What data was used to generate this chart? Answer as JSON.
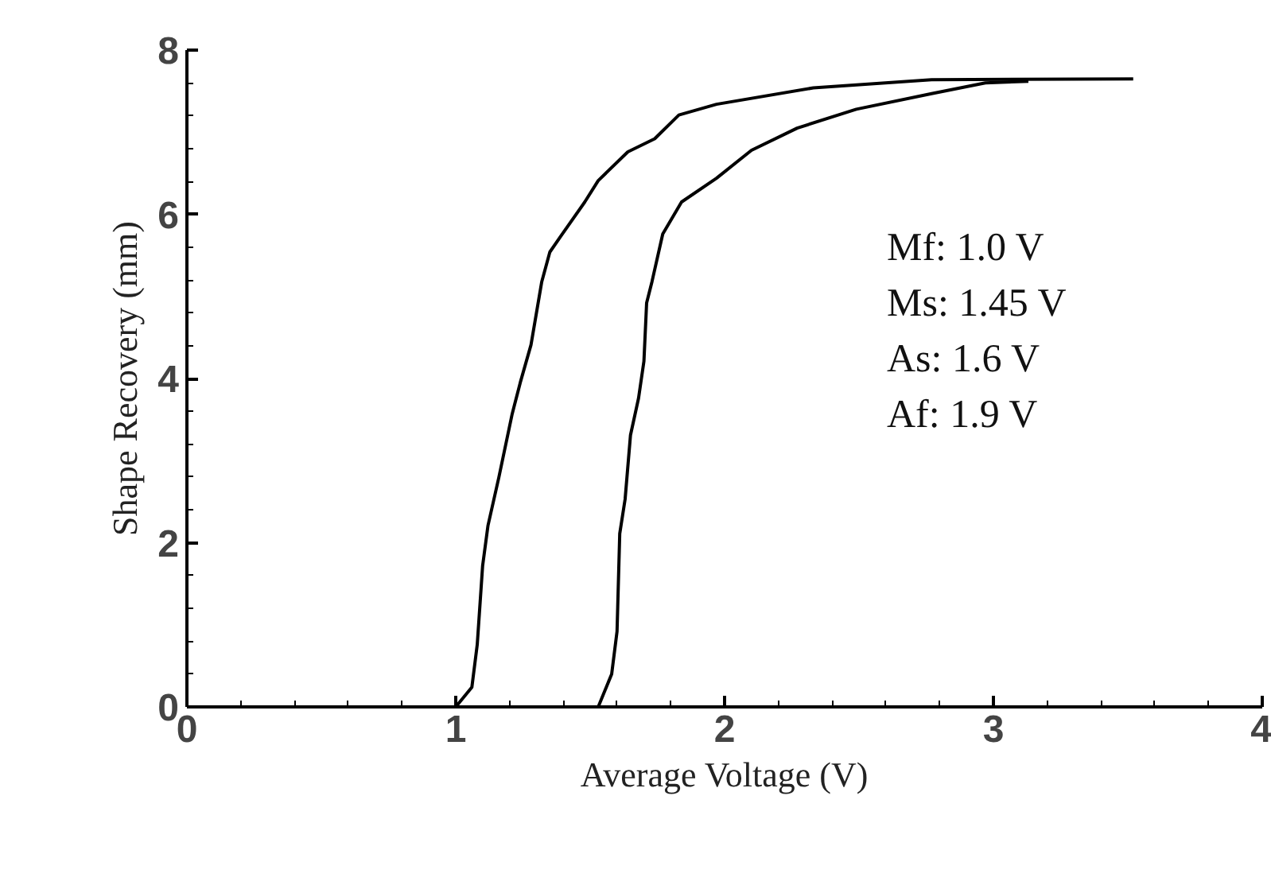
{
  "chart_data": {
    "type": "line",
    "xlabel": "Average Voltage (V)",
    "ylabel": "Shape Recovery (mm)",
    "xlim": [
      0,
      4
    ],
    "ylim": [
      0,
      8
    ],
    "xticks": [
      0,
      1,
      2,
      3,
      4
    ],
    "yticks": [
      0,
      2,
      4,
      6,
      8
    ],
    "grid": false,
    "marker": "none",
    "line_style": "solid",
    "series": [
      {
        "color": "#000000",
        "x": [
          0.0,
          1.0,
          1.06,
          1.08,
          1.1,
          1.12,
          1.16,
          1.21,
          1.24,
          1.28,
          1.32,
          1.35,
          1.39,
          1.48,
          1.53,
          1.64,
          1.74,
          1.83,
          1.97,
          2.33,
          2.77,
          3.52
        ],
        "values": [
          0,
          0,
          0.24,
          0.76,
          1.72,
          2.21,
          2.79,
          3.57,
          3.95,
          4.41,
          5.18,
          5.54,
          5.73,
          6.15,
          6.41,
          6.76,
          6.92,
          7.21,
          7.34,
          7.54,
          7.64,
          7.65
        ]
      },
      {
        "color": "#000000",
        "x": [
          1.53,
          1.58,
          1.6,
          1.61,
          1.63,
          1.65,
          1.68,
          1.7,
          1.71,
          1.73,
          1.77,
          1.84,
          1.97,
          2.1,
          2.27,
          2.49,
          2.77,
          2.97,
          3.13
        ],
        "values": [
          0,
          0.4,
          0.92,
          2.11,
          2.53,
          3.31,
          3.76,
          4.21,
          4.92,
          5.18,
          5.76,
          6.15,
          6.44,
          6.78,
          7.05,
          7.28,
          7.47,
          7.6,
          7.62
        ]
      }
    ],
    "annotations": [
      "Mf: 1.0 V",
      "Ms: 1.45 V",
      "As: 1.6 V",
      "Af: 1.9 V"
    ]
  }
}
